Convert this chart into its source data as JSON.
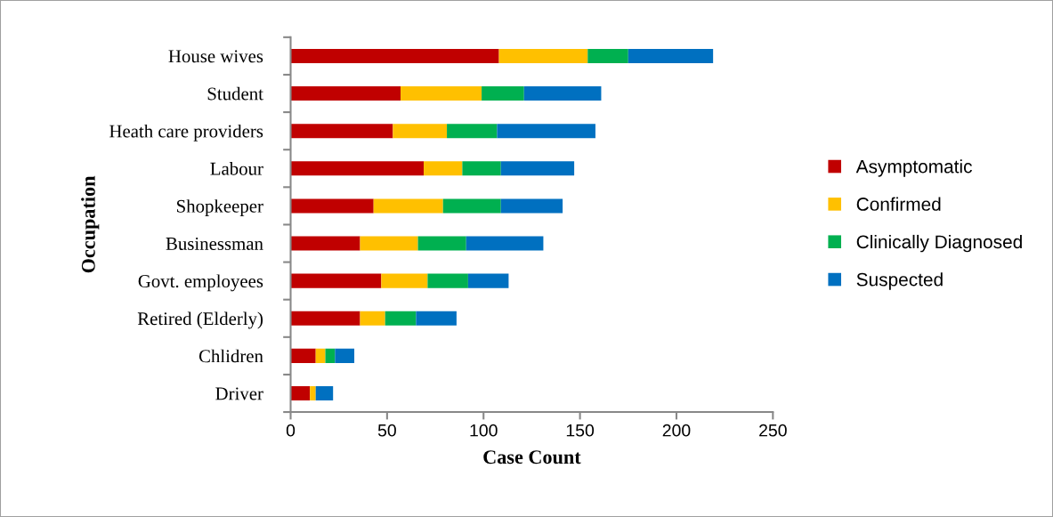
{
  "chart_data": {
    "type": "bar",
    "orientation": "horizontal",
    "stacked": true,
    "xlabel": "Case Count",
    "ylabel": "Occupation",
    "categories": [
      "House wives",
      "Student",
      "Heath care providers",
      "Labour",
      "Shopkeeper",
      "Businessman",
      "Govt. employees",
      "Retired (Elderly)",
      "Chlidren",
      "Driver"
    ],
    "series": [
      {
        "name": "Asymptomatic",
        "color": "#c00000",
        "values": [
          108,
          57,
          53,
          69,
          43,
          36,
          47,
          36,
          13,
          10
        ]
      },
      {
        "name": "Confirmed",
        "color": "#ffc000",
        "values": [
          46,
          42,
          28,
          20,
          36,
          30,
          24,
          13,
          5,
          3
        ]
      },
      {
        "name": "Clinically Diagnosed",
        "color": "#00b050",
        "values": [
          21,
          22,
          26,
          20,
          30,
          25,
          21,
          16,
          5,
          0
        ]
      },
      {
        "name": "Suspected",
        "color": "#0070c0",
        "values": [
          44,
          40,
          51,
          38,
          32,
          40,
          21,
          21,
          10,
          9
        ]
      }
    ],
    "xlim": [
      0,
      250
    ],
    "xticks": [
      0,
      50,
      100,
      150,
      200,
      250
    ],
    "grid": false,
    "legend": "right"
  }
}
